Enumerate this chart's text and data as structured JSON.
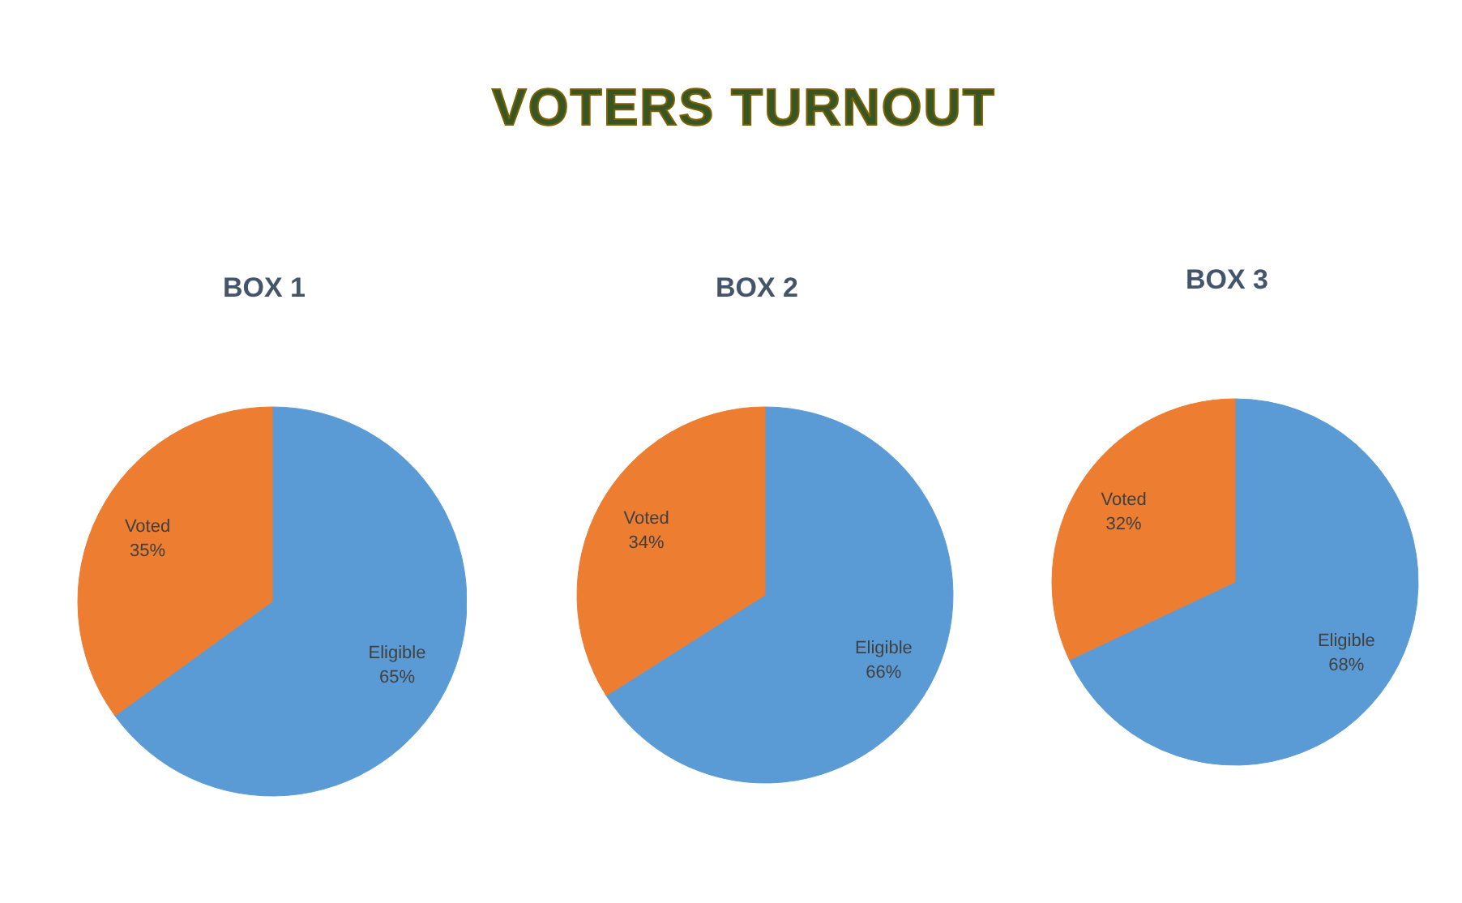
{
  "chart_data": [
    {
      "type": "other",
      "title": "VOTERS TURNOUT"
    },
    {
      "type": "pie",
      "title": "BOX 1",
      "categories": [
        "Eligible",
        "Voted"
      ],
      "values": [
        65,
        35
      ],
      "colors": [
        "#5b9bd5",
        "#ed7d31"
      ],
      "value_labels": [
        "65%",
        "35%"
      ],
      "legend": false
    },
    {
      "type": "pie",
      "title": "BOX 2",
      "categories": [
        "Eligible",
        "Voted"
      ],
      "values": [
        66,
        34
      ],
      "colors": [
        "#5b9bd5",
        "#ed7d31"
      ],
      "value_labels": [
        "66%",
        "34%"
      ],
      "legend": false
    },
    {
      "type": "pie",
      "title": "BOX 3",
      "categories": [
        "Eligible",
        "Voted"
      ],
      "values": [
        68,
        32
      ],
      "colors": [
        "#5b9bd5",
        "#ed7d31"
      ],
      "value_labels": [
        "68%",
        "32%"
      ],
      "legend": false
    }
  ]
}
